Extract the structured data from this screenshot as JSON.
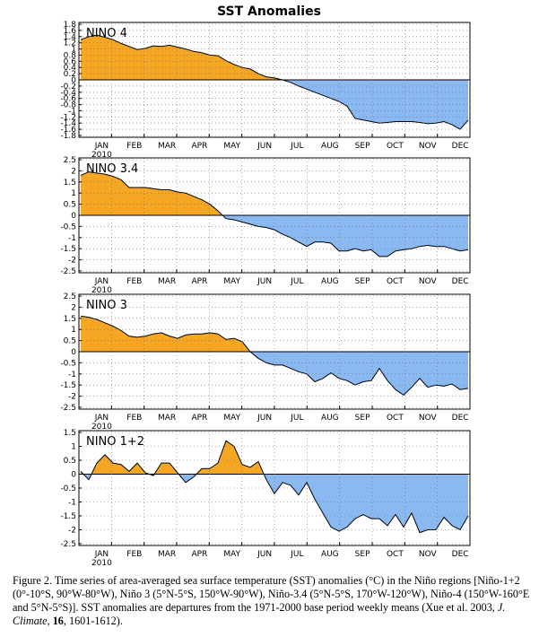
{
  "title": "SST Anomalies",
  "month_labels": [
    "JAN",
    "FEB",
    "MAR",
    "APR",
    "MAY",
    "JUN",
    "JUL",
    "AUG",
    "SEP",
    "OCT",
    "NOV",
    "DEC"
  ],
  "year_label": "2010",
  "colors": {
    "positive": "#f5a623",
    "negative": "#8ab9f2",
    "grid": "#6f6f6f",
    "axis": "#000000"
  },
  "chart_data": [
    {
      "type": "area",
      "title": "NINO 4",
      "ylim": [
        -1.8,
        1.8
      ],
      "yticks": [
        1.8,
        1.6,
        1.4,
        1.2,
        1,
        0.8,
        0.6,
        0.4,
        0.2,
        0,
        -0.2,
        -0.4,
        -0.6,
        -0.8,
        -1,
        -1.2,
        -1.4,
        -1.6,
        -1.8
      ],
      "ytick_labels": [
        "1.8",
        "1.6",
        "1.4",
        "1.2",
        "1",
        "0.8",
        "0.6",
        "0.4",
        "0.2",
        "0",
        "-0.2",
        "-0.4",
        "-0.6",
        "-0.8",
        "-1",
        "-1.2",
        "-1.4",
        "-1.6",
        "-1.8"
      ],
      "series": [
        {
          "values": [
            1.3,
            1.4,
            1.45,
            1.38,
            1.3,
            1.18,
            1.08,
            0.98,
            1.02,
            1.1,
            1.08,
            1.12,
            1.06,
            1.0,
            0.92,
            0.88,
            0.8,
            0.78,
            0.62,
            0.5,
            0.4,
            0.35,
            0.2,
            0.1,
            0.06,
            0.0,
            -0.08,
            -0.2,
            -0.3,
            -0.4,
            -0.5,
            -0.6,
            -0.7,
            -0.85,
            -1.25,
            -1.3,
            -1.35,
            -1.4,
            -1.38,
            -1.35,
            -1.35,
            -1.35,
            -1.38,
            -1.42,
            -1.4,
            -1.35,
            -1.45,
            -1.6,
            -1.3
          ]
        }
      ]
    },
    {
      "type": "area",
      "title": "NINO 3.4",
      "ylim": [
        -2.5,
        2.5
      ],
      "yticks": [
        2.5,
        2,
        1.5,
        1,
        0.5,
        0,
        -0.5,
        -1,
        -1.5,
        -2,
        -2.5
      ],
      "ytick_labels": [
        "2.5",
        "2",
        "1.5",
        "1",
        "0.5",
        "0",
        "-0.5",
        "-1",
        "-1.5",
        "-2",
        "-2.5"
      ],
      "series": [
        {
          "values": [
            1.8,
            1.95,
            1.9,
            1.85,
            1.75,
            1.6,
            1.25,
            1.25,
            1.25,
            1.2,
            1.15,
            1.15,
            1.05,
            1.0,
            0.85,
            0.7,
            0.5,
            0.2,
            -0.15,
            -0.2,
            -0.3,
            -0.4,
            -0.5,
            -0.55,
            -0.65,
            -0.85,
            -1.0,
            -1.2,
            -1.4,
            -1.2,
            -1.2,
            -1.25,
            -1.6,
            -1.6,
            -1.5,
            -1.6,
            -1.55,
            -1.85,
            -1.85,
            -1.6,
            -1.55,
            -1.5,
            -1.4,
            -1.35,
            -1.4,
            -1.4,
            -1.5,
            -1.6,
            -1.55
          ]
        }
      ]
    },
    {
      "type": "area",
      "title": "NINO 3",
      "ylim": [
        -2.5,
        2.5
      ],
      "yticks": [
        2.5,
        2,
        1.5,
        1,
        0.5,
        0,
        -0.5,
        -1,
        -1.5,
        -2,
        -2.5
      ],
      "ytick_labels": [
        "2.5",
        "2",
        "1.5",
        "1",
        "0.5",
        "0",
        "-0.5",
        "-1",
        "-1.5",
        "-2",
        "-2.5"
      ],
      "series": [
        {
          "values": [
            1.6,
            1.55,
            1.45,
            1.3,
            1.15,
            0.95,
            0.7,
            0.65,
            0.7,
            0.8,
            0.85,
            0.7,
            0.6,
            0.75,
            0.8,
            0.8,
            0.85,
            0.8,
            0.55,
            0.6,
            0.45,
            0.0,
            -0.3,
            -0.5,
            -0.6,
            -0.6,
            -0.75,
            -0.9,
            -1.0,
            -1.35,
            -1.2,
            -0.95,
            -1.2,
            -1.3,
            -1.5,
            -1.35,
            -1.3,
            -0.75,
            -1.3,
            -1.7,
            -1.95,
            -1.6,
            -1.2,
            -1.6,
            -1.5,
            -1.55,
            -1.45,
            -1.7,
            -1.65
          ]
        }
      ]
    },
    {
      "type": "area",
      "title": "NINO 1+2",
      "ylim": [
        -2.5,
        1.5
      ],
      "yticks": [
        1.5,
        1,
        0.5,
        0,
        -0.5,
        -1,
        -1.5,
        -2,
        -2.5
      ],
      "ytick_labels": [
        "1.5",
        "1",
        "0.5",
        "0",
        "-0.5",
        "-1",
        "-1.5",
        "-2",
        "-2.5"
      ],
      "series": [
        {
          "values": [
            0.1,
            -0.2,
            0.4,
            0.7,
            0.4,
            0.35,
            0.1,
            0.4,
            0.05,
            -0.05,
            0.4,
            0.4,
            0.05,
            -0.3,
            -0.1,
            0.2,
            0.2,
            0.4,
            1.2,
            1.0,
            0.35,
            0.25,
            0.45,
            -0.2,
            -0.7,
            -0.3,
            -0.4,
            -0.75,
            -0.3,
            -0.9,
            -1.4,
            -1.9,
            -2.05,
            -1.9,
            -1.6,
            -1.45,
            -1.6,
            -1.6,
            -1.85,
            -1.45,
            -1.9,
            -1.4,
            -2.1,
            -2.0,
            -2.0,
            -1.55,
            -1.85,
            -2.0,
            -1.5
          ]
        }
      ]
    }
  ],
  "caption": {
    "prefix": "Figure 2. Time series of area-averaged sea surface temperature (SST) anomalies (°C) in the Niño regions [Niño-1+2 (0°-10°S, 90°W-80°W), Niño 3 (5°N-5°S, 150°W-90°W), Niño-3.4 (5°N-5°S, 170°W-120°W), Niño-4 (150°W-160°E and 5°N-5°S)]. SST anomalies are departures from the 1971-2000 base period weekly means (Xue et al. 2003, ",
    "journal": "J. Climate",
    "separator": ", ",
    "volume": "16",
    "suffix": ", 1601-1612)."
  }
}
